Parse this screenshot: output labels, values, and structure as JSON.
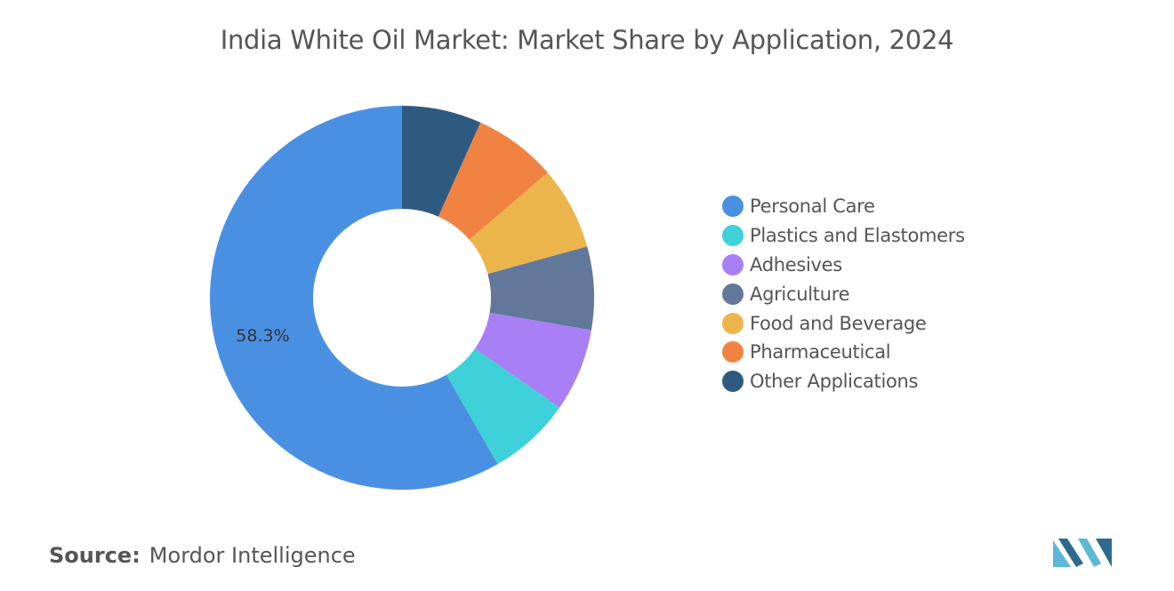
{
  "chart_data": {
    "type": "pie",
    "title": "India White Oil Market: Market Share by Application, 2024",
    "categories": [
      "Personal Care",
      "Plastics and Elastomers",
      "Adhesives",
      "Agriculture",
      "Food and Beverage",
      "Pharmaceutical",
      "Other Applications"
    ],
    "values": [
      58.3,
      7.0,
      7.0,
      7.0,
      7.0,
      7.0,
      6.7
    ],
    "colors": [
      "#4a90e2",
      "#3fd1d9",
      "#a97ff5",
      "#61789a",
      "#ecb54b",
      "#f08342",
      "#2e5a80"
    ],
    "data_labels": [
      "58.3%",
      "",
      "",
      "",
      "",
      "",
      ""
    ],
    "donut": true,
    "legend_position": "right"
  },
  "source": {
    "label": "Source:",
    "value": "Mordor Intelligence"
  },
  "logo": {
    "icon": "mordor-intelligence-logo",
    "colors": [
      "#5bb8d6",
      "#2e6a8e"
    ]
  }
}
